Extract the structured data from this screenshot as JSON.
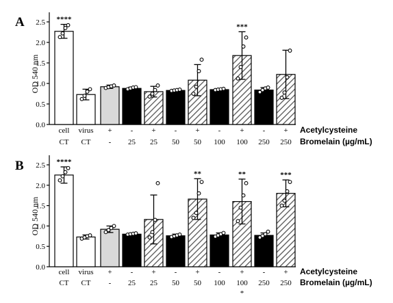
{
  "panels": [
    {
      "label": "A",
      "ylabel": "OD 540 nm",
      "ylim": [
        0,
        2.5
      ],
      "yticks": [
        "0.0",
        "0.5",
        "1.0",
        "1.5",
        "2.0",
        "2.5"
      ],
      "row1_label": "Acetylcysteine",
      "row2_label": "Bromelain (µg/mL)",
      "categories": [
        {
          "row1": "cell",
          "row2": "CT"
        },
        {
          "row1": "virus",
          "row2": "CT"
        },
        {
          "row1": "+",
          "row2": "-"
        },
        {
          "row1": "-",
          "row2": "25"
        },
        {
          "row1": "+",
          "row2": "25"
        },
        {
          "row1": "-",
          "row2": "50"
        },
        {
          "row1": "+",
          "row2": "50"
        },
        {
          "row1": "-",
          "row2": "100"
        },
        {
          "row1": "+",
          "row2": "100"
        },
        {
          "row1": "-",
          "row2": "250"
        },
        {
          "row1": "+",
          "row2": "250"
        }
      ],
      "extra_labels": []
    },
    {
      "label": "B",
      "ylabel": "OD 540 nm",
      "ylim": [
        0,
        2.5
      ],
      "yticks": [
        "0.0",
        "0.5",
        "1.0",
        "1.5",
        "2.0",
        "2.5"
      ],
      "row1_label": "Acetylcysteine",
      "row2_label": "Bromelain (µg/mL)",
      "categories": [
        {
          "row1": "cell",
          "row2": "CT"
        },
        {
          "row1": "virus",
          "row2": "CT"
        },
        {
          "row1": "+",
          "row2": "-"
        },
        {
          "row1": "-",
          "row2": "25"
        },
        {
          "row1": "+",
          "row2": "25"
        },
        {
          "row1": "-",
          "row2": "50"
        },
        {
          "row1": "+",
          "row2": "50"
        },
        {
          "row1": "-",
          "row2": "100"
        },
        {
          "row1": "+",
          "row2": "100"
        },
        {
          "row1": "-",
          "row2": "250"
        },
        {
          "row1": "+",
          "row2": "250"
        }
      ],
      "extra_labels": [
        {
          "index": 8,
          "text": "*"
        }
      ]
    }
  ],
  "chart_data": [
    {
      "type": "bar",
      "title": "A",
      "ylabel": "OD 540 nm",
      "ylim": [
        0,
        2.5
      ],
      "grid": false,
      "bars": [
        {
          "value": 2.27,
          "error": 0.17,
          "fill": "white",
          "hatch": false,
          "points": [
            2.13,
            2.22,
            2.35,
            2.42
          ],
          "annotation": "****"
        },
        {
          "value": 0.73,
          "error": 0.13,
          "fill": "white",
          "hatch": false,
          "points": [
            0.62,
            0.7,
            0.8,
            0.86
          ],
          "annotation": ""
        },
        {
          "value": 0.92,
          "error": 0.04,
          "fill": "#d9d9d9",
          "hatch": false,
          "points": [
            0.89,
            0.91,
            0.93,
            0.95
          ],
          "annotation": ""
        },
        {
          "value": 0.88,
          "error": 0.03,
          "fill": "black",
          "hatch": false,
          "points": [
            0.86,
            0.88,
            0.9,
            0.91
          ],
          "annotation": ""
        },
        {
          "value": 0.8,
          "error": 0.13,
          "fill": "white",
          "hatch": true,
          "points": [
            0.68,
            0.75,
            0.84,
            0.95
          ],
          "annotation": ""
        },
        {
          "value": 0.83,
          "error": 0.02,
          "fill": "black",
          "hatch": false,
          "points": [
            0.82,
            0.83,
            0.84,
            0.85
          ],
          "annotation": ""
        },
        {
          "value": 1.08,
          "error": 0.38,
          "fill": "white",
          "hatch": true,
          "points": [
            0.75,
            0.92,
            1.3,
            1.58
          ],
          "annotation": ""
        },
        {
          "value": 0.85,
          "error": 0.02,
          "fill": "black",
          "hatch": false,
          "points": [
            0.84,
            0.85,
            0.86,
            0.87
          ],
          "annotation": ""
        },
        {
          "value": 1.68,
          "error": 0.58,
          "fill": "white",
          "hatch": true,
          "points": [
            1.12,
            1.4,
            1.9,
            2.12
          ],
          "annotation": "***"
        },
        {
          "value": 0.84,
          "error": 0.06,
          "fill": "black",
          "hatch": false,
          "points": [
            0.79,
            0.84,
            0.88,
            0.9
          ],
          "annotation": ""
        },
        {
          "value": 1.22,
          "error": 0.59,
          "fill": "white",
          "hatch": true,
          "points": [
            0.65,
            0.78,
            1.15,
            1.8
          ],
          "annotation": ""
        }
      ]
    },
    {
      "type": "bar",
      "title": "B",
      "ylabel": "OD 540 nm",
      "ylim": [
        0,
        2.5
      ],
      "grid": false,
      "bars": [
        {
          "value": 2.25,
          "error": 0.2,
          "fill": "white",
          "hatch": false,
          "points": [
            2.12,
            2.22,
            2.32,
            2.42
          ],
          "annotation": "****"
        },
        {
          "value": 0.73,
          "error": 0.05,
          "fill": "white",
          "hatch": false,
          "points": [
            0.69,
            0.72,
            0.75,
            0.77
          ],
          "annotation": ""
        },
        {
          "value": 0.92,
          "error": 0.08,
          "fill": "#d9d9d9",
          "hatch": false,
          "points": [
            0.85,
            0.9,
            0.95,
            1.0
          ],
          "annotation": ""
        },
        {
          "value": 0.8,
          "error": 0.02,
          "fill": "black",
          "hatch": false,
          "points": [
            0.79,
            0.8,
            0.81,
            0.82
          ],
          "annotation": ""
        },
        {
          "value": 1.16,
          "error": 0.6,
          "fill": "white",
          "hatch": true,
          "points": [
            0.72,
            0.85,
            1.15,
            2.05
          ],
          "annotation": ""
        },
        {
          "value": 0.76,
          "error": 0.04,
          "fill": "black",
          "hatch": false,
          "points": [
            0.73,
            0.75,
            0.77,
            0.79
          ],
          "annotation": ""
        },
        {
          "value": 1.66,
          "error": 0.5,
          "fill": "white",
          "hatch": true,
          "points": [
            1.2,
            1.32,
            1.8,
            2.08
          ],
          "annotation": "**"
        },
        {
          "value": 0.78,
          "error": 0.05,
          "fill": "black",
          "hatch": false,
          "points": [
            0.74,
            0.77,
            0.8,
            0.83
          ],
          "annotation": ""
        },
        {
          "value": 1.6,
          "error": 0.55,
          "fill": "white",
          "hatch": true,
          "points": [
            1.12,
            1.45,
            1.75,
            2.05
          ],
          "annotation": "**"
        },
        {
          "value": 0.77,
          "error": 0.06,
          "fill": "black",
          "hatch": false,
          "points": [
            0.72,
            0.76,
            0.8,
            0.86
          ],
          "annotation": ""
        },
        {
          "value": 1.8,
          "error": 0.33,
          "fill": "white",
          "hatch": true,
          "points": [
            1.5,
            1.62,
            1.85,
            2.08
          ],
          "annotation": "***"
        }
      ]
    }
  ]
}
